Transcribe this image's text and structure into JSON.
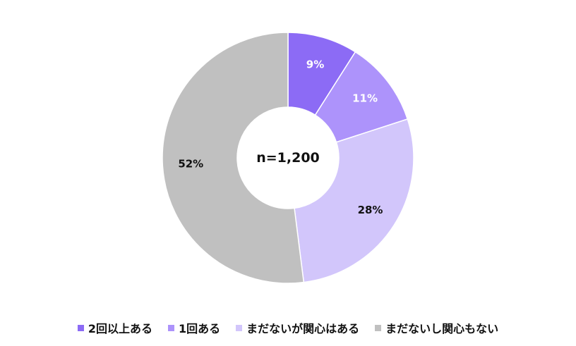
{
  "chart_data": {
    "type": "pie",
    "center_text": "n=1,200",
    "series": [
      {
        "name": "2回以上ある",
        "value": 9,
        "label": "9%",
        "color": "#8c6bf5",
        "label_color": "#ffffff"
      },
      {
        "name": "1回ある",
        "value": 11,
        "label": "11%",
        "color": "#ad93fb",
        "label_color": "#ffffff"
      },
      {
        "name": "まだないが関心はある",
        "value": 28,
        "label": "28%",
        "color": "#d2c6fb",
        "label_color": "#111111"
      },
      {
        "name": "まだないし関心もない",
        "value": 52,
        "label": "52%",
        "color": "#c0c0c0",
        "label_color": "#111111"
      }
    ],
    "legend_position": "bottom"
  }
}
